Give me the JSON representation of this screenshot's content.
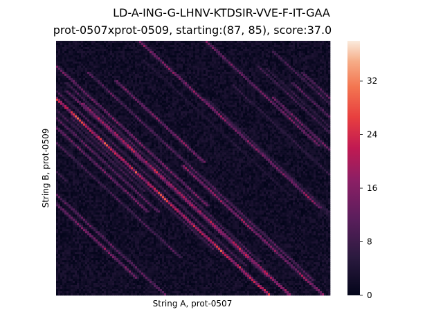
{
  "chart_data": {
    "type": "heatmap",
    "title_line1": "LD-A-ING-G-LHNV-KTDSIR-VVE-F-IT-GAA",
    "title_line2": "prot-0507xprot-0509, starting:(87, 85), score:37.0",
    "xlabel": "String A, prot-0507",
    "ylabel": "String B, prot-0509",
    "colorbar": {
      "min": 0,
      "max": 38,
      "ticks": [
        0,
        8,
        16,
        24,
        32
      ],
      "tick_labels": [
        "0",
        "8",
        "16",
        "24",
        "32"
      ],
      "colormap": "rocket"
    },
    "grid": false,
    "legend": "colorbar-right"
  }
}
